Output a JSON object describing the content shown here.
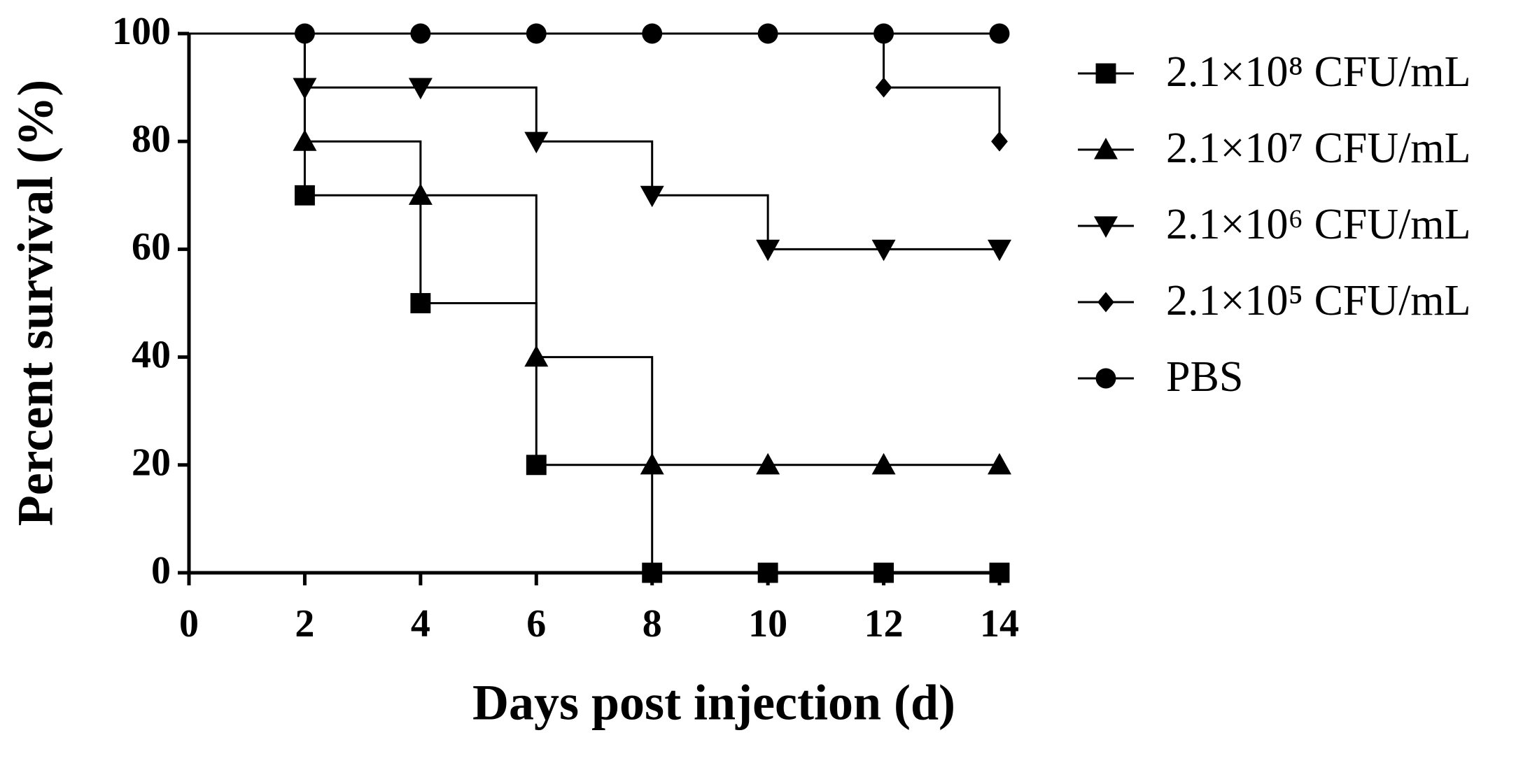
{
  "chart_data": {
    "type": "survival",
    "xlabel": "Days post injection (d)",
    "ylabel": "Percent survival (%)",
    "xlim": [
      0,
      14
    ],
    "xticks": [
      0,
      2,
      4,
      6,
      8,
      10,
      12,
      14
    ],
    "ylim": [
      0,
      100
    ],
    "yticks": [
      0,
      20,
      40,
      60,
      80,
      100
    ],
    "legend": "right",
    "series": [
      {
        "name": "2.1×10⁸ CFU/mL",
        "color": "#000000",
        "marker": "square",
        "x": [
          0,
          2,
          4,
          6,
          8,
          10,
          12,
          14
        ],
        "values": [
          100,
          70,
          50,
          20,
          0,
          0,
          0,
          0
        ]
      },
      {
        "name": "2.1×10⁷ CFU/mL",
        "color": "#000000",
        "marker": "triangle-up",
        "x": [
          0,
          2,
          4,
          6,
          8,
          10,
          12,
          14
        ],
        "values": [
          100,
          80,
          70,
          40,
          20,
          20,
          20,
          20
        ]
      },
      {
        "name": "2.1×10⁶ CFU/mL",
        "color": "#000000",
        "marker": "triangle-down",
        "x": [
          0,
          2,
          4,
          6,
          8,
          10,
          12,
          14
        ],
        "values": [
          100,
          90,
          90,
          80,
          70,
          60,
          60,
          60
        ]
      },
      {
        "name": "2.1×10⁵ CFU/mL",
        "color": "#000000",
        "marker": "diamond",
        "x": [
          0,
          2,
          4,
          6,
          8,
          10,
          12,
          14
        ],
        "values": [
          100,
          100,
          100,
          100,
          100,
          100,
          90,
          80
        ]
      },
      {
        "name": "PBS",
        "color": "#000000",
        "marker": "circle",
        "x": [
          0,
          2,
          4,
          6,
          8,
          10,
          12,
          14
        ],
        "values": [
          100,
          100,
          100,
          100,
          100,
          100,
          100,
          100
        ]
      }
    ]
  }
}
